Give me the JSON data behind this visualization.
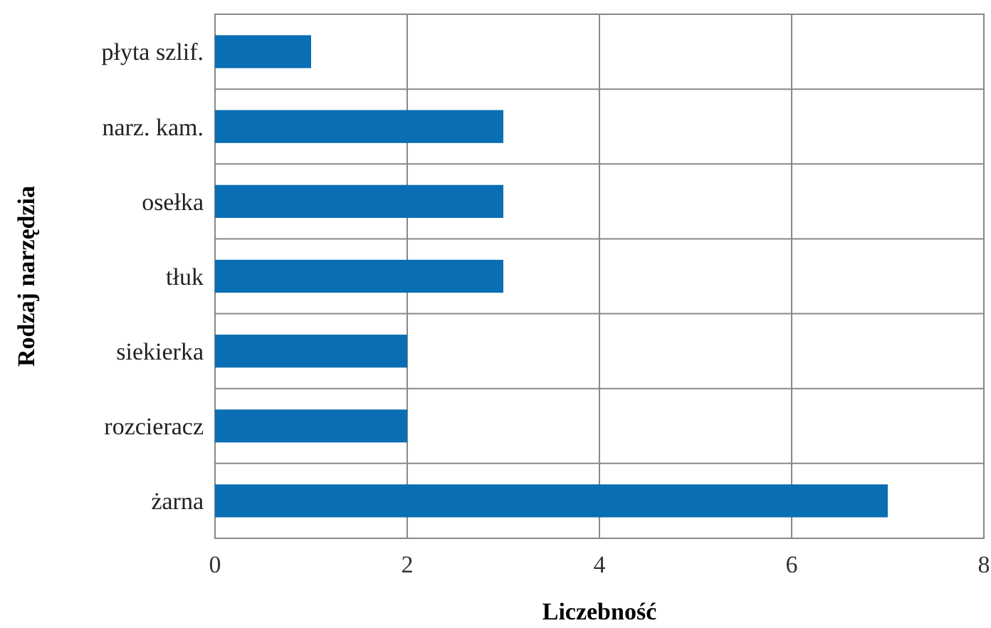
{
  "chart_data": {
    "type": "bar",
    "orientation": "horizontal",
    "xlabel": "Liczebność",
    "ylabel": "Rodzaj narzędzia",
    "categories": [
      "płyta szlif.",
      "narz. kam.",
      "osełka",
      "tłuk",
      "siekierka",
      "rozcieracz",
      "żarna"
    ],
    "values": [
      1,
      3,
      3,
      3,
      2,
      2,
      7
    ],
    "color": "#0a6eb4",
    "xlim": [
      0,
      8
    ],
    "xticks": [
      0,
      2,
      4,
      6,
      8
    ],
    "grid": true
  }
}
